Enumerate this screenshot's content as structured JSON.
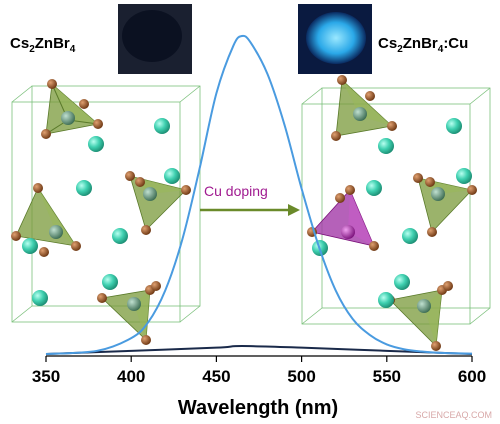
{
  "labels": {
    "left_compound_prefix": "Cs",
    "left_compound_sub1": "2",
    "left_compound_mid": "ZnBr",
    "left_compound_sub2": "4",
    "right_compound_prefix": "Cs",
    "right_compound_sub1": "2",
    "right_compound_mid": "ZnBr",
    "right_compound_sub2": "4",
    "right_compound_suffix": ":Cu",
    "arrow_label": "Cu doping",
    "watermark": "SCIENCEAQ.COM"
  },
  "axis": {
    "xlabel": "Wavelength (nm)",
    "ticks": [
      "350",
      "400",
      "450",
      "500",
      "550",
      "600"
    ]
  },
  "colors": {
    "emission_curve": "#4a9be0",
    "baseline_curve": "#1a2a4a",
    "cs_atom": "#3fd0b0",
    "br_atom": "#8a4a1a",
    "zn_tetra": "#7a9a3a",
    "cu_tetra": "#a23aa8",
    "arrow": "#6a8a2a",
    "arrow_label": "#a01a90",
    "cell_edge": "#7ac07a"
  },
  "chart_data": {
    "type": "line",
    "xlabel": "Wavelength (nm)",
    "ylabel": "",
    "xlim": [
      350,
      600
    ],
    "series": [
      {
        "x": [
          350,
          380,
          400,
          410,
          420,
          430,
          440,
          450,
          460,
          465,
          470,
          480,
          490,
          500,
          510,
          520,
          530,
          540,
          550,
          560,
          570,
          580,
          600
        ],
        "values": [
          0,
          0.01,
          0.05,
          0.1,
          0.2,
          0.36,
          0.58,
          0.82,
          0.97,
          1.0,
          0.98,
          0.88,
          0.72,
          0.52,
          0.34,
          0.2,
          0.11,
          0.06,
          0.03,
          0.015,
          0.008,
          0.004,
          0.001
        ]
      },
      {
        "x": [
          350,
          400,
          450,
          465,
          500,
          550,
          600
        ],
        "values": [
          0,
          0.01,
          0.02,
          0.025,
          0.02,
          0.01,
          0
        ]
      }
    ]
  }
}
